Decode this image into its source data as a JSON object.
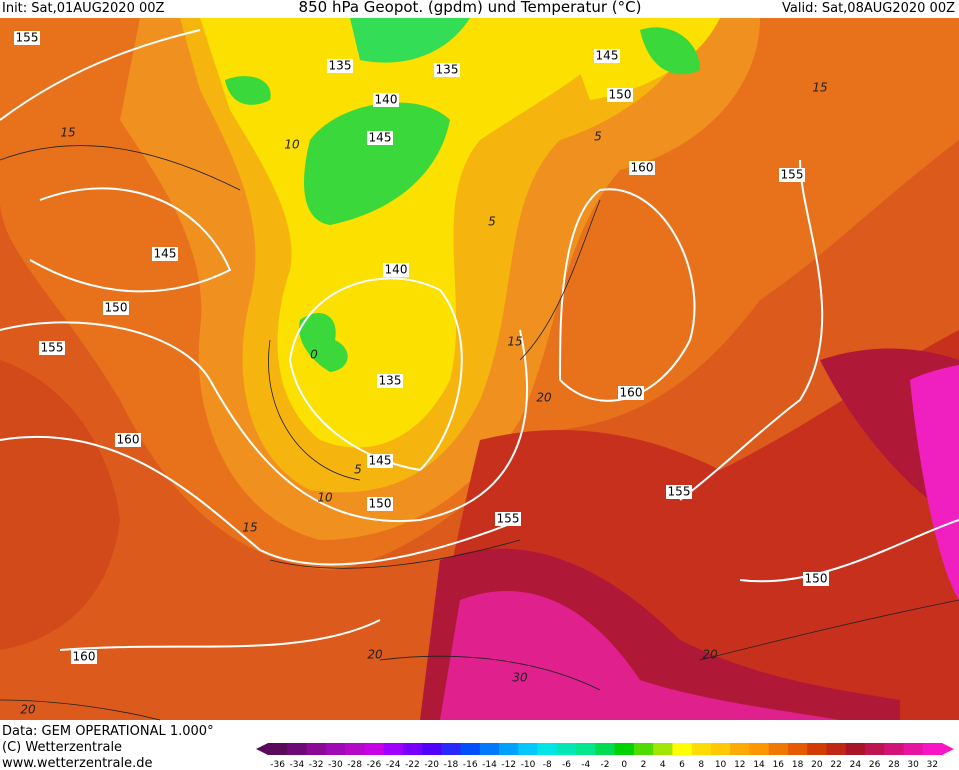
{
  "header": {
    "init": "Init: Sat,01AUG2020 00Z",
    "title": "850 hPa Geopot. (gpdm) und Temperatur (°C)",
    "valid": "Valid: Sat,08AUG2020 00Z"
  },
  "geopotential_labels": [
    "155",
    "135",
    "135",
    "145",
    "150",
    "140",
    "145",
    "160",
    "155",
    "145",
    "140",
    "150",
    "155",
    "135",
    "160",
    "160",
    "145",
    "155",
    "150",
    "155",
    "150",
    "160"
  ],
  "temperature_labels": [
    "15",
    "10",
    "5",
    "5",
    "15",
    "0",
    "15",
    "20",
    "5",
    "10",
    "15",
    "20",
    "30",
    "20",
    "20"
  ],
  "footer": {
    "data": "Data: GEM OPERATIONAL 1.000°",
    "copyright": "(C) Wetterzentrale",
    "url": "www.wetterzentrale.de"
  },
  "legend": {
    "labels": [
      -36,
      -34,
      -32,
      -30,
      -28,
      -26,
      -24,
      -22,
      -20,
      -18,
      -16,
      -14,
      -12,
      -10,
      -8,
      -6,
      -4,
      -2,
      0,
      2,
      4,
      6,
      8,
      10,
      12,
      14,
      16,
      18,
      20,
      22,
      24,
      26,
      28,
      30,
      32
    ],
    "colors": [
      "#5a0a5a",
      "#6e0a78",
      "#8a0a96",
      "#a00ab4",
      "#b40ac8",
      "#c800e6",
      "#a000ff",
      "#7800ff",
      "#5000ff",
      "#2828ff",
      "#0050ff",
      "#0078ff",
      "#00a0ff",
      "#00c8ff",
      "#00e6e6",
      "#00e6b4",
      "#00e68c",
      "#00dc50",
      "#00d200",
      "#50dc00",
      "#a0e600",
      "#ffff00",
      "#ffdc00",
      "#ffc800",
      "#ffaa00",
      "#ff9600",
      "#f07800",
      "#e65a00",
      "#d23c00",
      "#be2814",
      "#aa1428",
      "#be1450",
      "#d21478",
      "#e614a0",
      "#fa14c8"
    ]
  }
}
